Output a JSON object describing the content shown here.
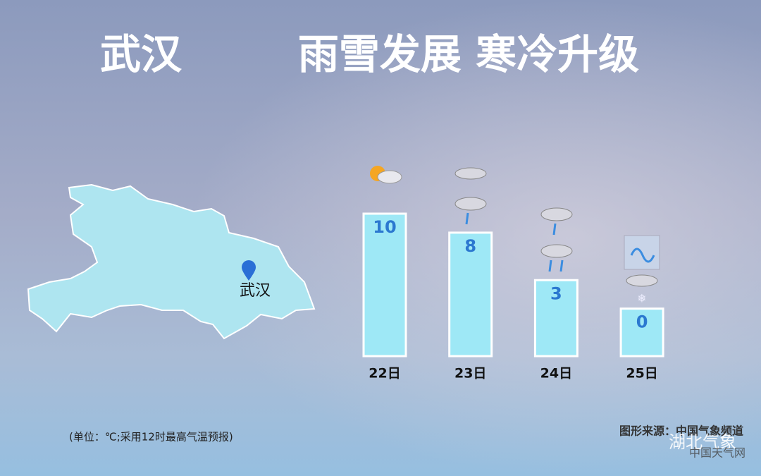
{
  "header": {
    "city": "武汉",
    "title": "雨雪发展 寒冷升级"
  },
  "map": {
    "city": "武汉"
  },
  "chart_data": {
    "type": "bar",
    "categories": [
      "22日",
      "23日",
      "24日",
      "25日"
    ],
    "values": [
      10,
      8,
      3,
      0
    ],
    "color": "#9ee8f6",
    "ylim": [
      -5,
      10
    ]
  },
  "note": "(单位：℃;采用12时最高气温预报)",
  "source": "图形来源：中国气象频道",
  "watermark": {
    "account": "湖北气象",
    "site": "中国天气网"
  }
}
